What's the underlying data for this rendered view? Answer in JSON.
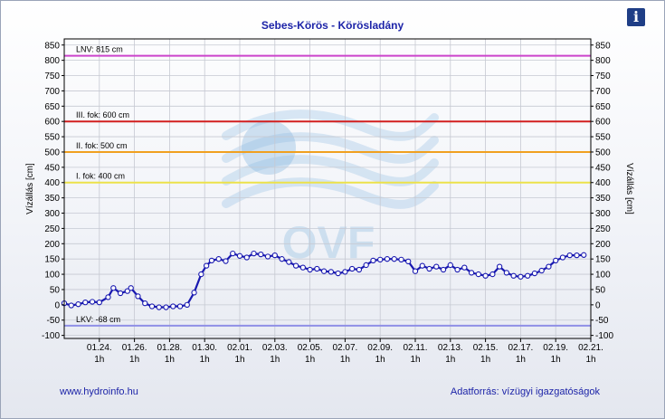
{
  "header": {
    "title": "Sebes-Körös - Körösladány",
    "info_icon": "info-icon",
    "info_glyph": "i"
  },
  "watermark": {
    "text": "OVF"
  },
  "footer": {
    "left_link": "www.hydroinfo.hu",
    "right_text": "Adatforrás: vízügyi igazgatóságok"
  },
  "chart_data": {
    "type": "line",
    "title": "Sebes-Körös - Körösladány",
    "ylabel_left": "Vízállás [cm]",
    "ylabel_right": "Vízállás [cm]",
    "ylim": [
      -110,
      870
    ],
    "yticks": [
      -100,
      -50,
      0,
      50,
      100,
      150,
      200,
      250,
      300,
      350,
      400,
      450,
      500,
      550,
      600,
      650,
      700,
      750,
      800,
      850
    ],
    "xlim": [
      0,
      30
    ],
    "x_ticks": [
      {
        "x": 2,
        "date": "01.24.",
        "hour": "1h"
      },
      {
        "x": 4,
        "date": "01.26.",
        "hour": "1h"
      },
      {
        "x": 6,
        "date": "01.28.",
        "hour": "1h"
      },
      {
        "x": 8,
        "date": "01.30.",
        "hour": "1h"
      },
      {
        "x": 10,
        "date": "02.01.",
        "hour": "1h"
      },
      {
        "x": 12,
        "date": "02.03.",
        "hour": "1h"
      },
      {
        "x": 14,
        "date": "02.05.",
        "hour": "1h"
      },
      {
        "x": 16,
        "date": "02.07.",
        "hour": "1h"
      },
      {
        "x": 18,
        "date": "02.09.",
        "hour": "1h"
      },
      {
        "x": 20,
        "date": "02.11.",
        "hour": "1h"
      },
      {
        "x": 22,
        "date": "02.13.",
        "hour": "1h"
      },
      {
        "x": 24,
        "date": "02.15.",
        "hour": "1h"
      },
      {
        "x": 26,
        "date": "02.17.",
        "hour": "1h"
      },
      {
        "x": 28,
        "date": "02.19.",
        "hour": "1h"
      },
      {
        "x": 30,
        "date": "02.21.",
        "hour": "1h"
      }
    ],
    "thresholds": [
      {
        "label": "LNV: 815 cm",
        "value": 815,
        "color": "#cc44cc"
      },
      {
        "label": "III. fok: 600 cm",
        "value": 600,
        "color": "#d21f1f"
      },
      {
        "label": "II. fok: 500 cm",
        "value": 500,
        "color": "#f0a020"
      },
      {
        "label": "I. fok: 400 cm",
        "value": 400,
        "color": "#ece24a"
      },
      {
        "label": "LKV: -68 cm",
        "value": -68,
        "color": "#8f8fe6"
      }
    ],
    "series": [
      {
        "color": "#1818b0",
        "points": [
          [
            0.0,
            5
          ],
          [
            0.4,
            -2
          ],
          [
            0.8,
            2
          ],
          [
            1.2,
            8
          ],
          [
            1.6,
            10
          ],
          [
            2.0,
            8
          ],
          [
            2.5,
            25
          ],
          [
            2.8,
            55
          ],
          [
            3.2,
            38
          ],
          [
            3.6,
            45
          ],
          [
            3.8,
            55
          ],
          [
            4.2,
            28
          ],
          [
            4.6,
            5
          ],
          [
            5.0,
            -5
          ],
          [
            5.4,
            -8
          ],
          [
            5.8,
            -8
          ],
          [
            6.2,
            -5
          ],
          [
            6.6,
            -5
          ],
          [
            7.0,
            0
          ],
          [
            7.4,
            40
          ],
          [
            7.8,
            100
          ],
          [
            8.1,
            128
          ],
          [
            8.4,
            145
          ],
          [
            8.8,
            150
          ],
          [
            9.2,
            143
          ],
          [
            9.6,
            168
          ],
          [
            10.0,
            160
          ],
          [
            10.4,
            155
          ],
          [
            10.8,
            168
          ],
          [
            11.2,
            165
          ],
          [
            11.6,
            158
          ],
          [
            12.0,
            162
          ],
          [
            12.4,
            150
          ],
          [
            12.8,
            140
          ],
          [
            13.2,
            128
          ],
          [
            13.6,
            122
          ],
          [
            14.0,
            115
          ],
          [
            14.4,
            118
          ],
          [
            14.8,
            110
          ],
          [
            15.2,
            108
          ],
          [
            15.6,
            103
          ],
          [
            16.0,
            108
          ],
          [
            16.4,
            118
          ],
          [
            16.8,
            115
          ],
          [
            17.2,
            130
          ],
          [
            17.6,
            145
          ],
          [
            18.0,
            148
          ],
          [
            18.4,
            150
          ],
          [
            18.8,
            150
          ],
          [
            19.2,
            148
          ],
          [
            19.6,
            142
          ],
          [
            20.0,
            110
          ],
          [
            20.4,
            128
          ],
          [
            20.8,
            118
          ],
          [
            21.2,
            125
          ],
          [
            21.6,
            115
          ],
          [
            22.0,
            130
          ],
          [
            22.4,
            115
          ],
          [
            22.8,
            122
          ],
          [
            23.2,
            105
          ],
          [
            23.6,
            100
          ],
          [
            24.0,
            95
          ],
          [
            24.4,
            100
          ],
          [
            24.8,
            125
          ],
          [
            25.2,
            105
          ],
          [
            25.6,
            95
          ],
          [
            26.0,
            92
          ],
          [
            26.4,
            95
          ],
          [
            26.8,
            103
          ],
          [
            27.2,
            112
          ],
          [
            27.6,
            125
          ],
          [
            28.0,
            145
          ],
          [
            28.4,
            155
          ],
          [
            28.8,
            162
          ],
          [
            29.2,
            162
          ],
          [
            29.6,
            163
          ]
        ]
      }
    ],
    "grid": true
  }
}
